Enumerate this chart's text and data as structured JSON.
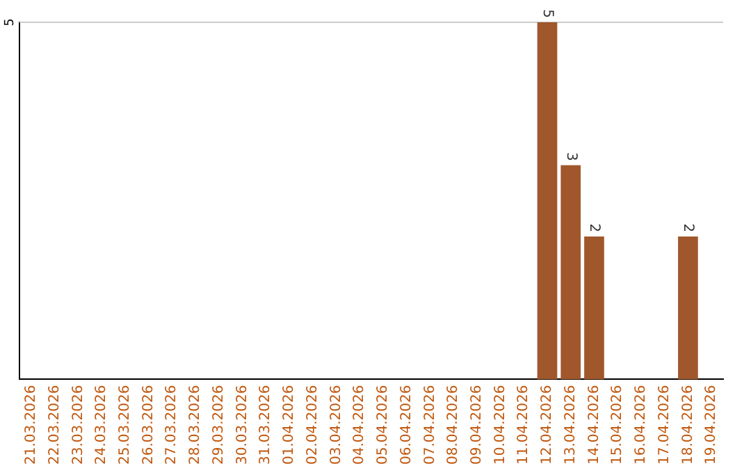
{
  "chart_data": {
    "type": "bar",
    "categories": [
      "21.03.2026",
      "22.03.2026",
      "23.03.2026",
      "24.03.2026",
      "25.03.2026",
      "26.03.2026",
      "27.03.2026",
      "28.03.2026",
      "29.03.2026",
      "30.03.2026",
      "31.03.2026",
      "01.04.2026",
      "02.04.2026",
      "03.04.2026",
      "04.04.2026",
      "05.04.2026",
      "06.04.2026",
      "07.04.2026",
      "08.04.2026",
      "09.04.2026",
      "10.04.2026",
      "11.04.2026",
      "12.04.2026",
      "13.04.2026",
      "14.04.2026",
      "15.04.2026",
      "16.04.2026",
      "17.04.2026",
      "18.04.2026",
      "19.04.2026"
    ],
    "values": [
      null,
      null,
      null,
      null,
      null,
      null,
      null,
      null,
      null,
      null,
      null,
      null,
      null,
      null,
      null,
      null,
      null,
      null,
      null,
      null,
      null,
      null,
      5,
      3,
      2,
      null,
      null,
      null,
      2,
      null
    ],
    "data_labels": true,
    "color": "#a0572b",
    "ylim": [
      0,
      5
    ],
    "ref_lines": [
      {
        "axis": "y",
        "value": 5,
        "label": "5",
        "color": "#cccccc"
      }
    ],
    "legend": false
  }
}
